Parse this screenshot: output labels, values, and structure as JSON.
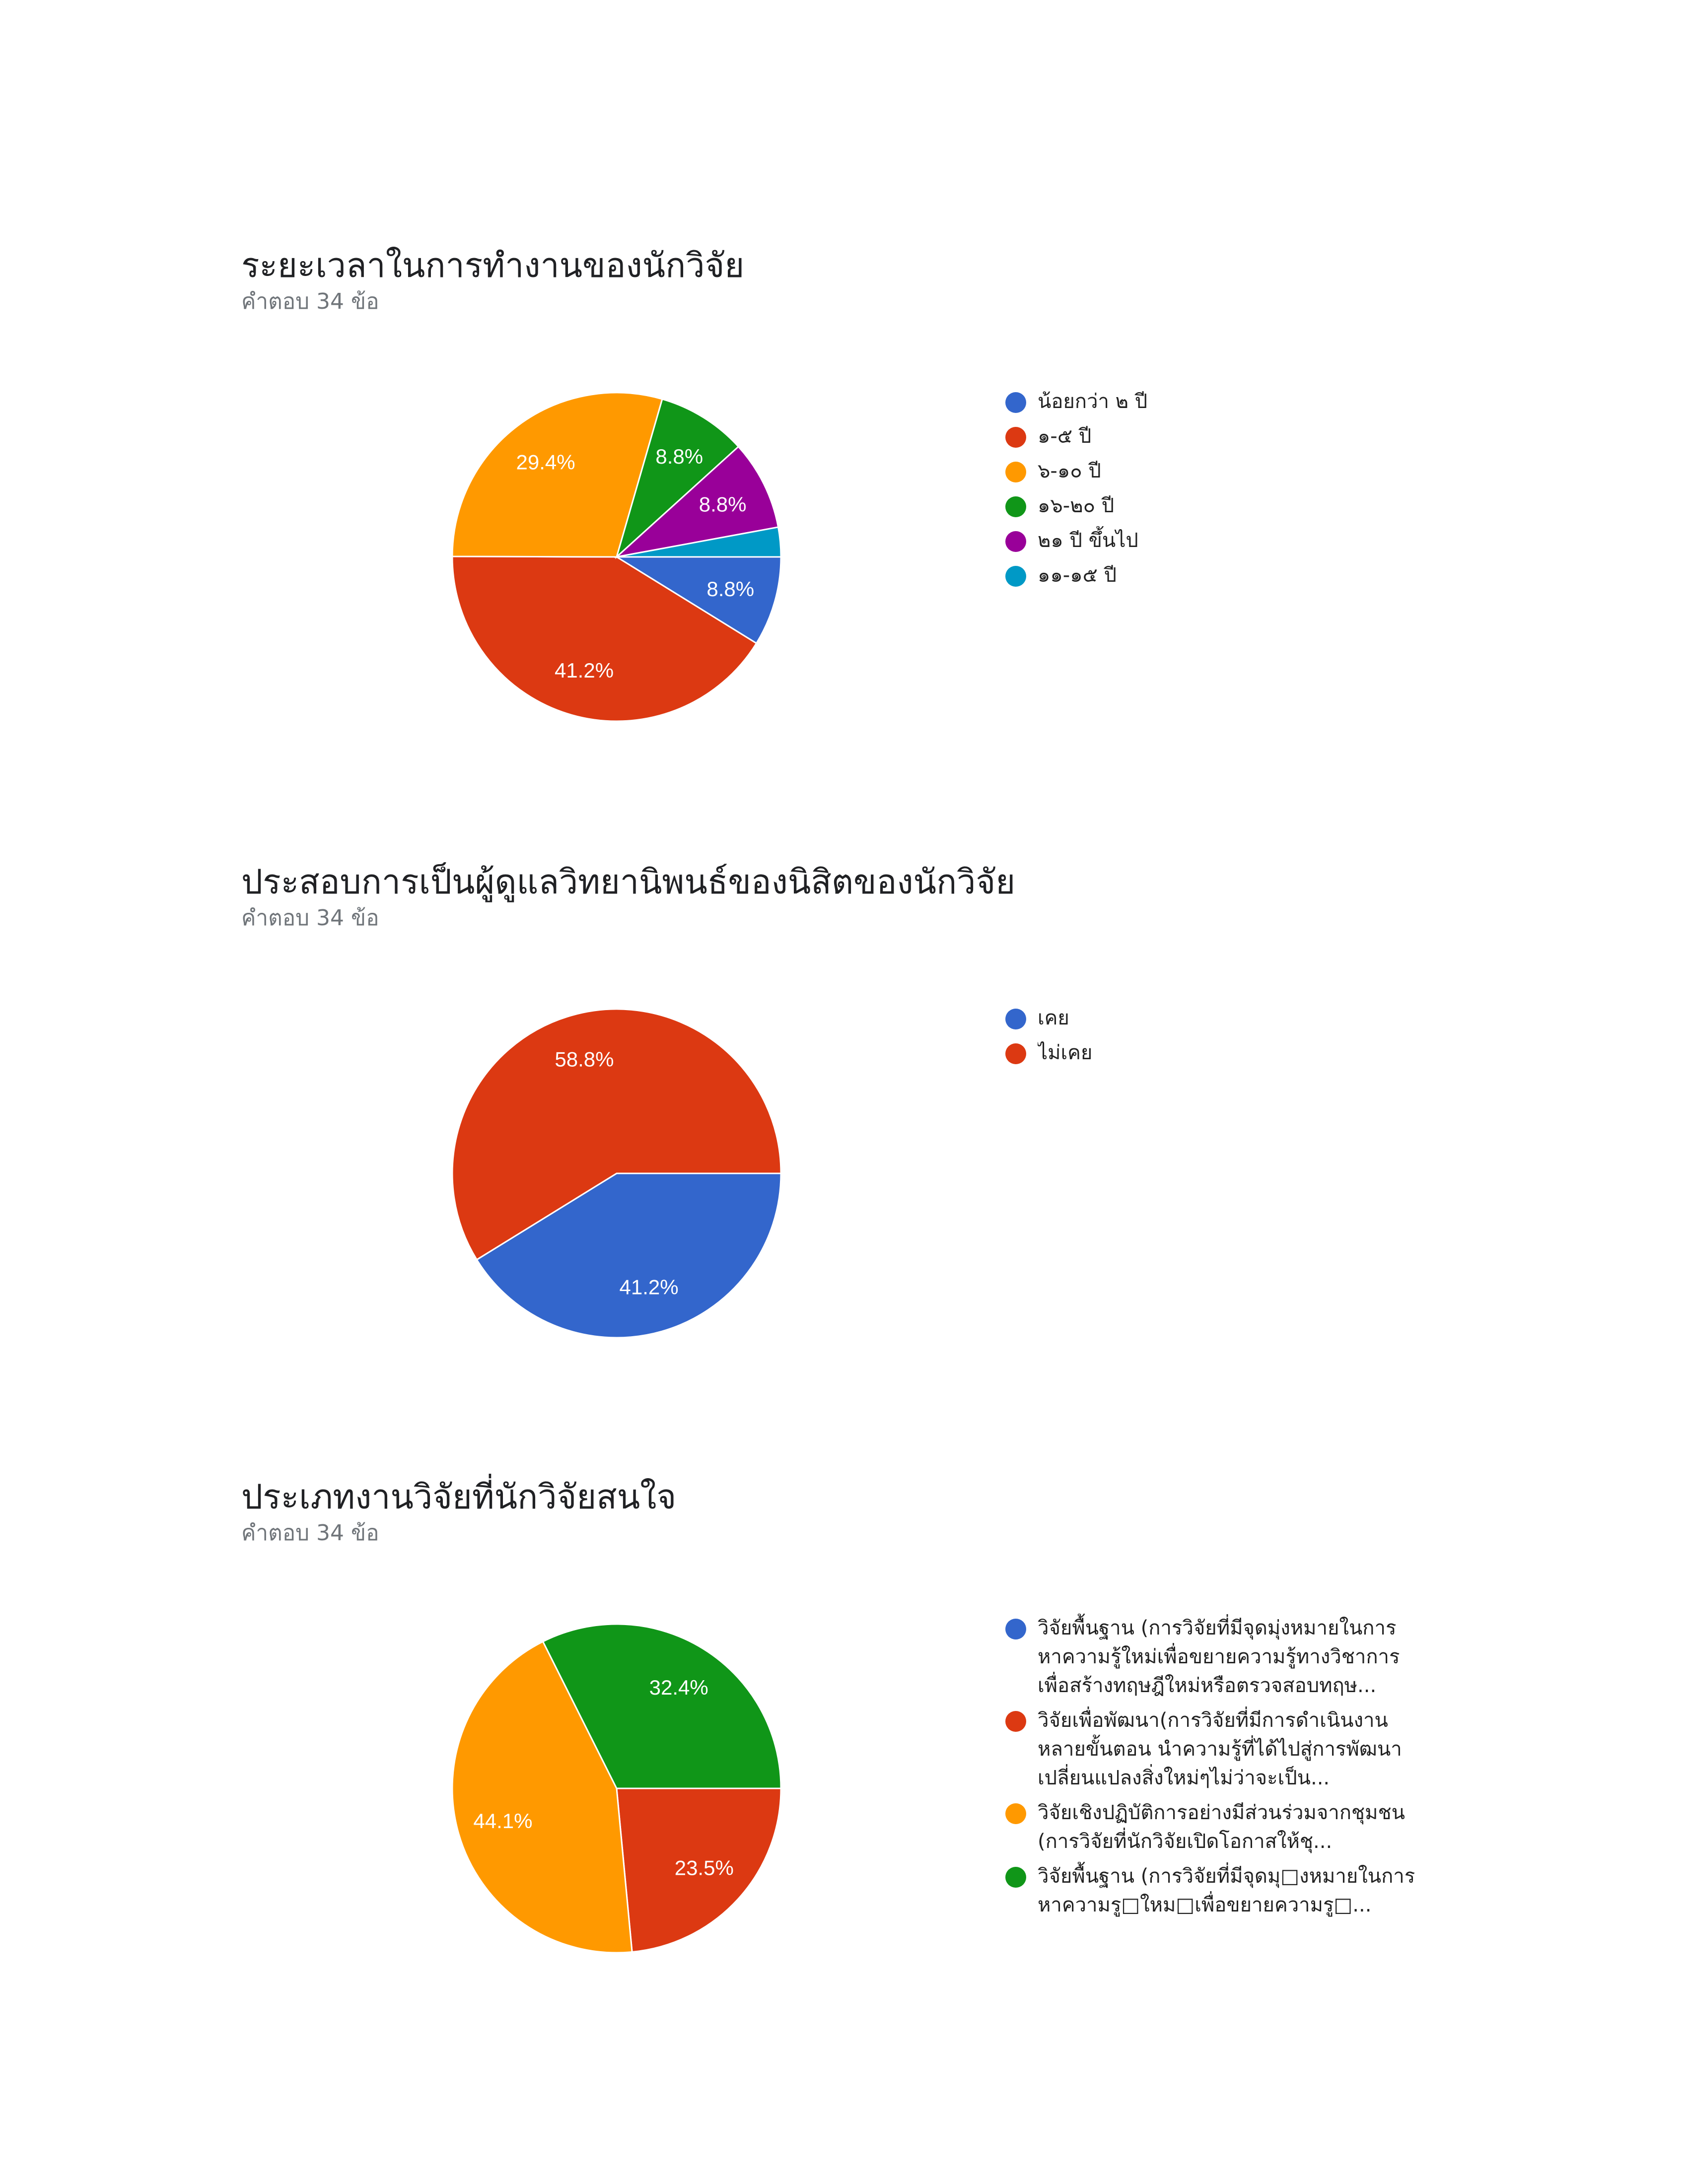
{
  "chart_data": [
    {
      "type": "pie",
      "title": "ระยะเวลาในการทำงานของนักวิจัย",
      "subtitle": "คำตอบ 34 ข้อ",
      "categories": [
        "น้อยกว่า ๒ ปี",
        "๑-๕ ปี",
        "๖-๑๐ ปี",
        "๑๖-๒๐ ปี",
        "๒๑ ปี ขึ้นไป",
        "๑๑-๑๕ ปี"
      ],
      "values": [
        8.8,
        41.2,
        29.4,
        8.8,
        8.8,
        2.9
      ],
      "data_labels": [
        "8.8%",
        "41.2%",
        "29.4%",
        "8.8%",
        "8.8%",
        ""
      ],
      "colors": [
        "#3366cc",
        "#dc3912",
        "#ff9900",
        "#109618",
        "#990099",
        "#0099c6"
      ],
      "legend": "right"
    },
    {
      "type": "pie",
      "title": "ประสอบการเป็นผู้ดูแลวิทยานิพนธ์ของนิสิตของนักวิจัย",
      "subtitle": "คำตอบ 34 ข้อ",
      "categories": [
        "เคย",
        "ไม่เคย"
      ],
      "values": [
        41.2,
        58.8
      ],
      "data_labels": [
        "41.2%",
        "58.8%"
      ],
      "colors": [
        "#3366cc",
        "#dc3912"
      ],
      "legend": "right"
    },
    {
      "type": "pie",
      "title": "ประเภทงานวิจัยที่นักวิจัยสนใจ",
      "subtitle": "คำตอบ 34 ข้อ",
      "categories": [
        "วิจัยพื้นฐาน (การวิจัยที่มีจุดมุ่งหมายในการหาความรู้ใหม่เพื่อขยายความรู้ทางวิชาการเพื่อสร้างทฤษฎีใหม่หรือตรวจสอบทฤษ...",
        "วิจัยเพื่อพัฒนา(การวิจัยที่มีการดำเนินงานหลายขั้นตอน นำความรู้ที่ได้ไปสู่การพัฒนาเปลี่ยนแปลงสิ่งใหม่ๆไม่ว่าจะเป็น...",
        "วิจัยเชิงปฏิบัติการอย่างมีส่วนร่วมจากชุมชน (การวิจัยที่นักวิจัยเปิดโอกาสให้ชุ...",
        "วิจัยพื้นฐาน (การวิจัยที่มีจุดมุ□งหมายในการหาความรู□ใหม□เพื่อขยายความรู□..."
      ],
      "values": [
        0,
        23.5,
        44.1,
        32.4
      ],
      "data_labels": [
        "",
        "23.5%",
        "44.1%",
        "32.4%"
      ],
      "colors": [
        "#3366cc",
        "#dc3912",
        "#ff9900",
        "#109618"
      ],
      "legend": "right"
    }
  ]
}
